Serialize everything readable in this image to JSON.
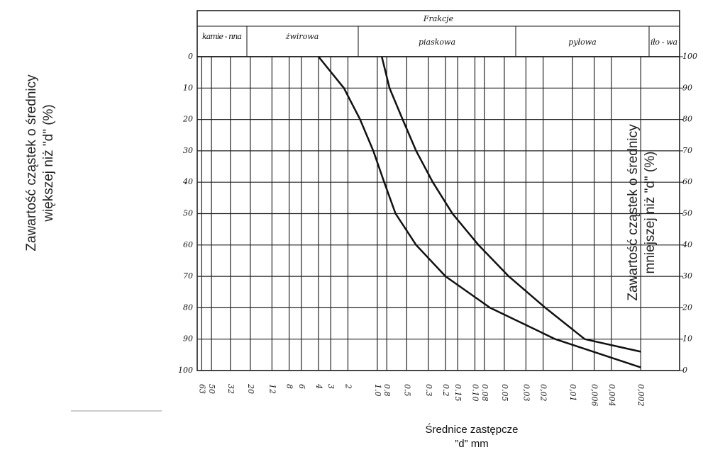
{
  "chart_data": {
    "type": "line",
    "title": "Frakcje",
    "fractions": [
      "kamie - nna",
      "żwirowa",
      "piaskowa",
      "pyłowa",
      "iło - wa"
    ],
    "ylabel": [
      "Zawartość cząstek o średnicy",
      "większej niż \"d\" (%)"
    ],
    "y2label": [
      "Zawartość cząstek o średnicy",
      "mniejszej niż \"d\" (%)"
    ],
    "xlabel": [
      "Średnice zastępcze",
      "”d” mm"
    ],
    "xlog": true,
    "xlim": [
      70,
      0.0008
    ],
    "xticks": [
      63,
      50,
      32,
      20,
      12,
      8,
      6,
      4,
      3,
      2,
      {
        "value": 1,
        "label": "1.0"
      },
      0.8,
      0.5,
      0.3,
      0.2,
      0.15,
      {
        "value": 0.1,
        "label": "0.10"
      },
      0.08,
      0.05,
      {
        "value": 0.03,
        "label": "0,03"
      },
      {
        "value": 0.02,
        "label": "0,02"
      },
      {
        "value": 0.01,
        "label": "0,01"
      },
      {
        "value": 0.006,
        "label": "0,006"
      },
      {
        "value": 0.004,
        "label": "0,004"
      },
      {
        "value": 0.002,
        "label": "0,002"
      }
    ],
    "ylim": [
      100,
      0
    ],
    "yticks": [
      0,
      10,
      20,
      30,
      40,
      50,
      60,
      70,
      80,
      90,
      100
    ],
    "y2lim": [
      0,
      100
    ],
    "y2ticks": [
      100,
      90,
      80,
      70,
      60,
      50,
      40,
      30,
      20,
      10,
      0
    ],
    "grid": true,
    "series": [
      {
        "color": "#111111",
        "x": [
          4,
          2.2,
          1.5,
          1.1,
          0.85,
          0.65,
          0.4,
          0.2,
          0.07,
          0.015,
          0.002
        ],
        "values": [
          0,
          10,
          20,
          30,
          40,
          50,
          60,
          70,
          80,
          90,
          99
        ]
      },
      {
        "color": "#111111",
        "x": [
          0.9,
          0.75,
          0.55,
          0.4,
          0.27,
          0.17,
          0.092,
          0.045,
          0.019,
          0.0075,
          0.002
        ],
        "values": [
          0,
          10,
          20,
          30,
          40,
          50,
          60,
          70,
          80,
          90,
          94
        ]
      }
    ]
  }
}
